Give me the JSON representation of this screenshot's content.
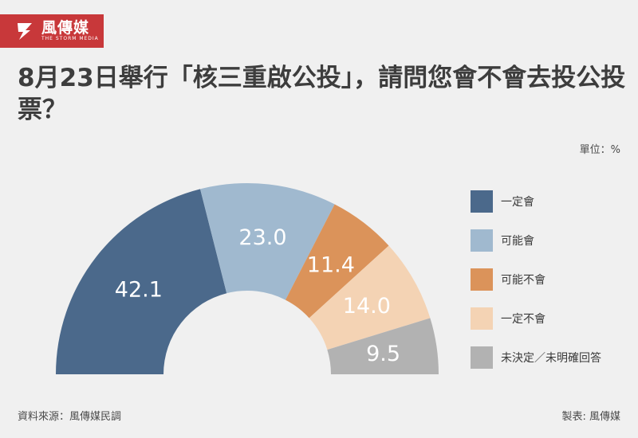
{
  "brand": {
    "name": "風傳媒",
    "subtitle": "THE STORM MEDIA",
    "color": "#c8383a"
  },
  "title": "8月23日舉行「核三重啟公投」，請問您會不會去投公投票？",
  "unit_label": "單位：%",
  "footer": {
    "source": "資料來源：風傳媒民調",
    "credit": "製表: 風傳媒"
  },
  "chart_data": {
    "type": "pie",
    "variant": "half-donut",
    "title": "8月23日舉行「核三重啟公投」，請問您會不會去投公投票？",
    "unit": "%",
    "legend_position": "right",
    "slices": [
      {
        "label": "一定會",
        "value": 42.1,
        "color": "#4b698b"
      },
      {
        "label": "可能會",
        "value": 23.0,
        "color": "#a0b9cf"
      },
      {
        "label": "可能不會",
        "value": 11.4,
        "color": "#db935a"
      },
      {
        "label": "一定不會",
        "value": 14.0,
        "color": "#f4d3b4"
      },
      {
        "label": "未決定／未明確回答",
        "value": 9.5,
        "color": "#b2b2b2"
      }
    ]
  }
}
